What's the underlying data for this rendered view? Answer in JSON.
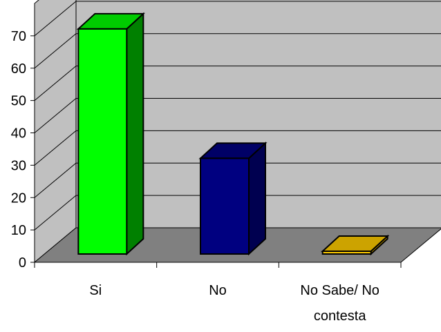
{
  "chart_data": {
    "type": "bar",
    "style": "3d-column",
    "categories": [
      "Si",
      "No",
      "No Sabe/ No contesta"
    ],
    "category_lines": [
      [
        "Si"
      ],
      [
        "No"
      ],
      [
        "No Sabe/ No",
        "contesta"
      ]
    ],
    "values": [
      70,
      30,
      1
    ],
    "yticks": [
      "0",
      "10",
      "20",
      "30",
      "40",
      "50",
      "60",
      "70"
    ],
    "ylim": [
      0,
      80
    ],
    "grid": true,
    "legend": "none",
    "colors": {
      "bars": [
        {
          "front": "#00ff00",
          "side": "#008000",
          "top": "#00cc00"
        },
        {
          "front": "#000080",
          "side": "#000050",
          "top": "#000066"
        },
        {
          "front": "#ffcc00",
          "side": "#b38f00",
          "top": "#cca300"
        }
      ],
      "back_wall": "#c0c0c0",
      "side_wall": "#c0c0c0",
      "floor": "#808080",
      "grid": "#000000"
    }
  }
}
